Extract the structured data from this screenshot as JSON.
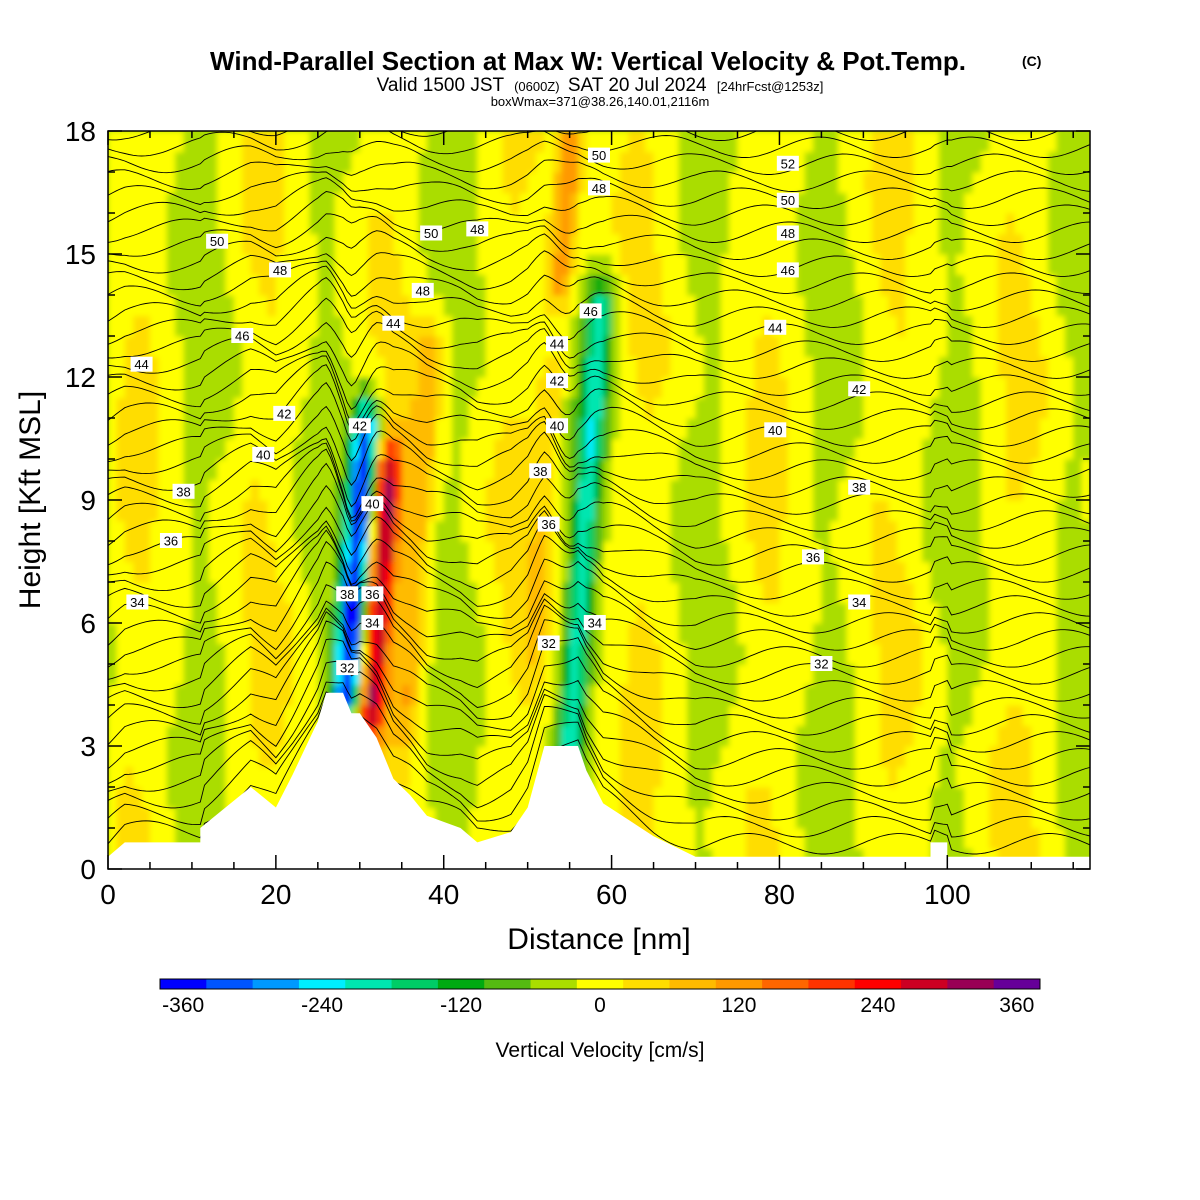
{
  "title": "Wind-Parallel Section at Max W: Vertical Velocity & Pot.Temp.",
  "copyright_mark": "(C)",
  "subtitle": {
    "prefix": "Valid 1500 JST",
    "utc": "(0600Z)",
    "date": "SAT 20 Jul 2024",
    "forecast": "[24hrFcst@1253z]"
  },
  "subtitle2": "boxWmax=371@38.26,140.01,2116m",
  "colorbar": {
    "label": "Vertical Velocity [cm/s]",
    "tick_labels": [
      "-360",
      "-240",
      "-120",
      "0",
      "120",
      "240",
      "360"
    ],
    "colors": [
      "#0000ff",
      "#0055ff",
      "#0099ff",
      "#00eeff",
      "#00e6b0",
      "#00cc66",
      "#00aa11",
      "#55bb11",
      "#aadd00",
      "#ffff00",
      "#ffdd00",
      "#ffbb00",
      "#ff9900",
      "#ff6600",
      "#ff3300",
      "#ff0000",
      "#cc0022",
      "#990055",
      "#660099"
    ]
  },
  "chart_data": {
    "type": "heatmap",
    "xlabel": "Distance [nm]",
    "ylabel": "Height [Kft MSL]",
    "xlim": [
      0,
      117
    ],
    "ylim": [
      0,
      18
    ],
    "xticks": [
      0,
      20,
      40,
      60,
      80,
      100
    ],
    "yticks": [
      0,
      3,
      6,
      9,
      12,
      15,
      18
    ],
    "w_range_cm_s": [
      -380,
      380
    ],
    "w_max": 371,
    "w_features": [
      {
        "x": 28.5,
        "y_range": [
          4.5,
          10.5
        ],
        "w": -360
      },
      {
        "x": 31.5,
        "y_range": [
          4.0,
          9.5
        ],
        "w": 300
      },
      {
        "x": 35.5,
        "y_range": [
          4.0,
          12.5
        ],
        "w": 90
      },
      {
        "x": 55.0,
        "y_range": [
          3.0,
          13.5
        ],
        "w": -180
      },
      {
        "x": 51.0,
        "y_range": [
          6.0,
          12.0
        ],
        "w": 60
      },
      {
        "x": 54.0,
        "y_range": [
          14.5,
          18.0
        ],
        "w": 150
      }
    ],
    "terrain_kft": [
      {
        "x": 0,
        "h": 0.3
      },
      {
        "x": 2,
        "h": 0.65
      },
      {
        "x": 11,
        "h": 0.65
      },
      {
        "x": 11,
        "h": 1.0
      },
      {
        "x": 14,
        "h": 1.5
      },
      {
        "x": 17,
        "h": 2.0
      },
      {
        "x": 20,
        "h": 1.5
      },
      {
        "x": 22,
        "h": 2.3
      },
      {
        "x": 25,
        "h": 3.6
      },
      {
        "x": 26,
        "h": 4.3
      },
      {
        "x": 28,
        "h": 4.3
      },
      {
        "x": 29,
        "h": 3.8
      },
      {
        "x": 30,
        "h": 3.8
      },
      {
        "x": 32,
        "h": 3.2
      },
      {
        "x": 34,
        "h": 2.2
      },
      {
        "x": 36,
        "h": 1.8
      },
      {
        "x": 38,
        "h": 1.3
      },
      {
        "x": 42,
        "h": 1.0
      },
      {
        "x": 44,
        "h": 0.65
      },
      {
        "x": 48,
        "h": 0.9
      },
      {
        "x": 50,
        "h": 1.5
      },
      {
        "x": 52,
        "h": 3.0
      },
      {
        "x": 56,
        "h": 3.0
      },
      {
        "x": 57,
        "h": 2.4
      },
      {
        "x": 59,
        "h": 1.6
      },
      {
        "x": 62,
        "h": 1.2
      },
      {
        "x": 65,
        "h": 0.8
      },
      {
        "x": 68,
        "h": 0.5
      },
      {
        "x": 70,
        "h": 0.3
      },
      {
        "x": 98,
        "h": 0.3
      },
      {
        "x": 98,
        "h": 0.65
      },
      {
        "x": 100,
        "h": 0.65
      },
      {
        "x": 100,
        "h": 0.3
      },
      {
        "x": 117,
        "h": 0.3
      }
    ],
    "theta_contour_labels": [
      {
        "value": "50",
        "x": 13,
        "y": 15.3
      },
      {
        "value": "48",
        "x": 20.5,
        "y": 14.6
      },
      {
        "value": "46",
        "x": 16,
        "y": 13.0
      },
      {
        "value": "44",
        "x": 4,
        "y": 12.3
      },
      {
        "value": "42",
        "x": 21,
        "y": 11.1
      },
      {
        "value": "40",
        "x": 18.5,
        "y": 10.1
      },
      {
        "value": "38",
        "x": 9,
        "y": 9.2
      },
      {
        "value": "36",
        "x": 7.5,
        "y": 8.0
      },
      {
        "value": "34",
        "x": 3.5,
        "y": 6.5
      },
      {
        "value": "44",
        "x": 34,
        "y": 13.3
      },
      {
        "value": "42",
        "x": 30,
        "y": 10.8
      },
      {
        "value": "40",
        "x": 31.5,
        "y": 8.9
      },
      {
        "value": "38",
        "x": 28.5,
        "y": 6.7
      },
      {
        "value": "36",
        "x": 31.5,
        "y": 6.7
      },
      {
        "value": "34",
        "x": 31.5,
        "y": 6.0
      },
      {
        "value": "32",
        "x": 28.5,
        "y": 4.9
      },
      {
        "value": "50",
        "x": 38.5,
        "y": 15.5
      },
      {
        "value": "48",
        "x": 44,
        "y": 15.6
      },
      {
        "value": "48",
        "x": 37.5,
        "y": 14.1
      },
      {
        "value": "50",
        "x": 58.5,
        "y": 17.4
      },
      {
        "value": "48",
        "x": 58.5,
        "y": 16.6
      },
      {
        "value": "46",
        "x": 57.5,
        "y": 13.6
      },
      {
        "value": "44",
        "x": 53.5,
        "y": 12.8
      },
      {
        "value": "42",
        "x": 53.5,
        "y": 11.9
      },
      {
        "value": "40",
        "x": 53.5,
        "y": 10.8
      },
      {
        "value": "38",
        "x": 51.5,
        "y": 9.7
      },
      {
        "value": "36",
        "x": 52.5,
        "y": 8.4
      },
      {
        "value": "34",
        "x": 58,
        "y": 6.0
      },
      {
        "value": "32",
        "x": 52.5,
        "y": 5.5
      },
      {
        "value": "52",
        "x": 81,
        "y": 17.2
      },
      {
        "value": "50",
        "x": 81,
        "y": 16.3
      },
      {
        "value": "48",
        "x": 81,
        "y": 15.5
      },
      {
        "value": "46",
        "x": 81,
        "y": 14.6
      },
      {
        "value": "44",
        "x": 79.5,
        "y": 13.2
      },
      {
        "value": "42",
        "x": 89.5,
        "y": 11.7
      },
      {
        "value": "40",
        "x": 79.5,
        "y": 10.7
      },
      {
        "value": "38",
        "x": 89.5,
        "y": 9.3
      },
      {
        "value": "36",
        "x": 84,
        "y": 7.6
      },
      {
        "value": "34",
        "x": 89.5,
        "y": 6.5
      },
      {
        "value": "32",
        "x": 85,
        "y": 5.0
      }
    ]
  }
}
